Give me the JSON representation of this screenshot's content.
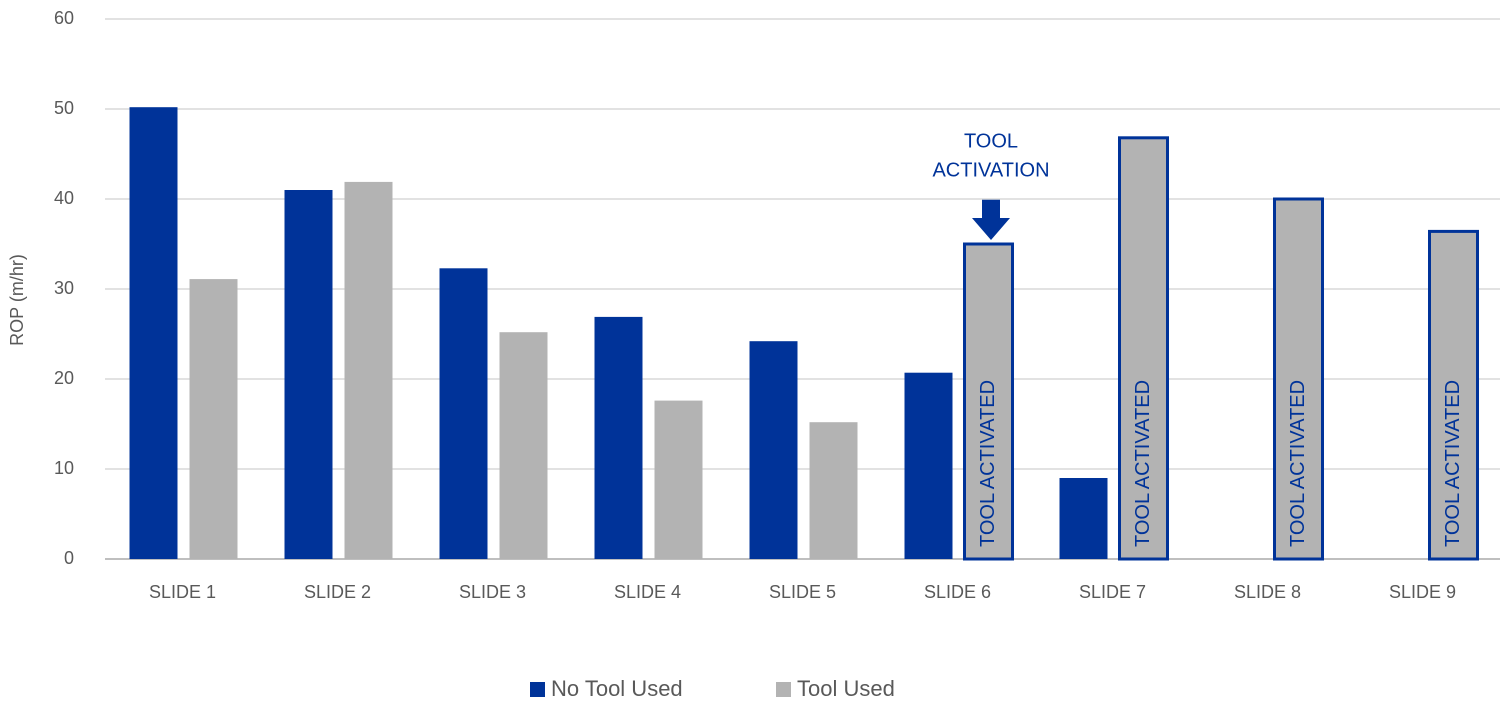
{
  "chart_data": {
    "type": "bar",
    "y_label": "ROP (m/hr)",
    "categories": [
      "SLIDE 1",
      "SLIDE 2",
      "SLIDE 3",
      "SLIDE 4",
      "SLIDE 5",
      "SLIDE 6",
      "SLIDE 7",
      "SLIDE 8",
      "SLIDE 9"
    ],
    "series": [
      {
        "name": "No Tool Used",
        "color": "#003399",
        "values": [
          50.2,
          41,
          32.3,
          26.9,
          24.2,
          20.7,
          9,
          null,
          null
        ]
      },
      {
        "name": "Tool Used",
        "color": "#b3b3b3",
        "values": [
          31.1,
          41.9,
          25.2,
          17.6,
          15.2,
          35,
          46.8,
          40,
          36.4
        ],
        "bar_labels": [
          null,
          null,
          null,
          null,
          null,
          "TOOL ACTIVATED",
          "TOOL ACTIVATED",
          "TOOL ACTIVATED",
          "TOOL ACTIVATED"
        ],
        "outline_color": "#003399"
      }
    ],
    "annotation": [
      "TOOL",
      "ACTIVATION"
    ],
    "ylim": [
      0,
      60
    ],
    "yticks": [
      0,
      10,
      20,
      30,
      40,
      50,
      60
    ],
    "grid": true,
    "legend": "bottom"
  }
}
